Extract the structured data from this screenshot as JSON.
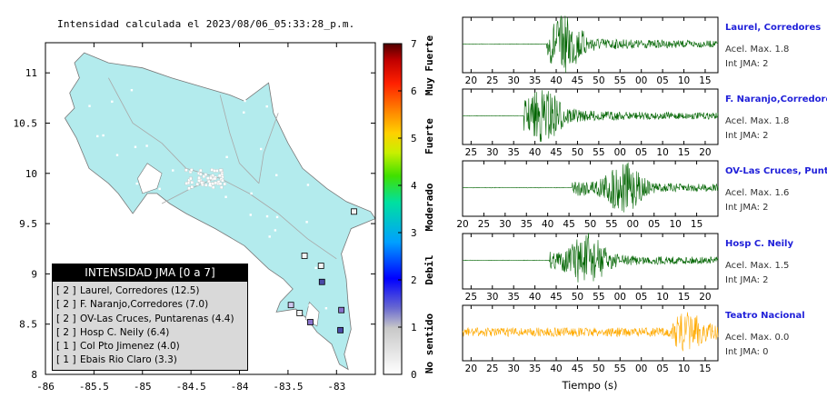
{
  "title": "Intensidad calculada el 2023/08/06_05:33:28_p.m.",
  "map": {
    "xlim": [
      -86,
      -82.6
    ],
    "ylim": [
      8,
      11.3
    ],
    "xticks": [
      -86,
      -85.5,
      -85,
      -84.5,
      -84,
      -83.5,
      -83
    ],
    "yticks": [
      8,
      8.5,
      9,
      9.5,
      10,
      10.5,
      11
    ],
    "xtick_labels": [
      "-86",
      "-85.5",
      "-85",
      "-84.5",
      "-84",
      "-83.5",
      "-83"
    ],
    "ytick_labels": [
      "8",
      "8.5",
      "9",
      "9.5",
      "10",
      "10.5",
      "11"
    ],
    "land_color": "#b3ebed",
    "stations": [
      {
        "lon": -83.16,
        "lat": 9.08,
        "color": "#f4f4f4"
      },
      {
        "lon": -83.33,
        "lat": 9.18,
        "color": "#f4f4f4"
      },
      {
        "lon": -83.15,
        "lat": 8.92,
        "color": "#4a4aa8"
      },
      {
        "lon": -83.47,
        "lat": 8.69,
        "color": "#d0c8f0"
      },
      {
        "lon": -83.38,
        "lat": 8.61,
        "color": "#f4f4f4"
      },
      {
        "lon": -83.27,
        "lat": 8.52,
        "color": "#8a74cc"
      },
      {
        "lon": -82.95,
        "lat": 8.64,
        "color": "#8a74cc"
      },
      {
        "lon": -82.96,
        "lat": 8.44,
        "color": "#4a4aa8"
      },
      {
        "lon": -82.82,
        "lat": 9.62,
        "color": "#f4f4f4"
      }
    ]
  },
  "colorbar": {
    "ticks": [
      "0",
      "1",
      "2",
      "3",
      "4",
      "5",
      "6",
      "7"
    ],
    "labels": [
      "No sentido",
      "Debil",
      "Moderado",
      "Fuerte",
      "Muy Fuerte"
    ]
  },
  "legend": {
    "title": "INTENSIDAD JMA [0 a 7]",
    "items": [
      {
        "intensity": "[ 2 ]",
        "label": "Laurel, Corredores (12.5)"
      },
      {
        "intensity": "[ 2 ]",
        "label": "F. Naranjo,Corredores (7.0)"
      },
      {
        "intensity": "[ 2 ]",
        "label": "OV-Las Cruces, Puntarenas (4.4)"
      },
      {
        "intensity": "[ 2 ]",
        "label": "Hosp C. Neily (6.4)"
      },
      {
        "intensity": "[ 1 ]",
        "label": "Col Pto Jimenez (4.0)"
      },
      {
        "intensity": "[ 1 ]",
        "label": "Ebais Rio Claro (3.3)"
      }
    ]
  },
  "waveforms": {
    "xlabel": "Tiempo (s)",
    "panels": [
      {
        "name": "Laurel, Corredores",
        "acc": "Acel. Max. 1.8",
        "int": "Int JMA: 2",
        "color": "#006400",
        "ticks": [
          "20",
          "25",
          "30",
          "35",
          "40",
          "45",
          "50",
          "55",
          "00",
          "05",
          "10",
          "15"
        ],
        "first_tick_offset": 1,
        "onset": 0.33,
        "peak": 0.4
      },
      {
        "name": "F. Naranjo,Corredores",
        "acc": "Acel. Max. 1.8",
        "int": "Int JMA: 2",
        "color": "#006400",
        "ticks": [
          "25",
          "30",
          "35",
          "40",
          "45",
          "50",
          "55",
          "00",
          "05",
          "10",
          "15",
          "20"
        ],
        "first_tick_offset": 1,
        "onset": 0.24,
        "peak": 0.32
      },
      {
        "name": "OV-Las Cruces, Puntar",
        "acc": "Acel. Max. 1.6",
        "int": "Int JMA: 2",
        "color": "#006400",
        "ticks": [
          "20",
          "25",
          "30",
          "35",
          "40",
          "45",
          "50",
          "55",
          "00",
          "05",
          "10",
          "15"
        ],
        "first_tick_offset": 0,
        "onset": 0.43,
        "peak": 0.63
      },
      {
        "name": "Hosp C. Neily",
        "acc": "Acel. Max. 1.5",
        "int": "Int JMA: 2",
        "color": "#006400",
        "ticks": [
          "25",
          "30",
          "35",
          "40",
          "45",
          "50",
          "55",
          "00",
          "05",
          "10",
          "15",
          "20"
        ],
        "first_tick_offset": 1,
        "onset": 0.34,
        "peak": 0.49
      },
      {
        "name": "Teatro Nacional",
        "acc": "Acel. Max. 0.0",
        "int": "Int JMA: 0",
        "color": "#ffaa00",
        "ticks": [
          "20",
          "25",
          "30",
          "35",
          "40",
          "45",
          "50",
          "55",
          "00",
          "05",
          "10",
          "15"
        ],
        "first_tick_offset": 1,
        "onset": 0.0,
        "peak": 0.9
      }
    ]
  }
}
